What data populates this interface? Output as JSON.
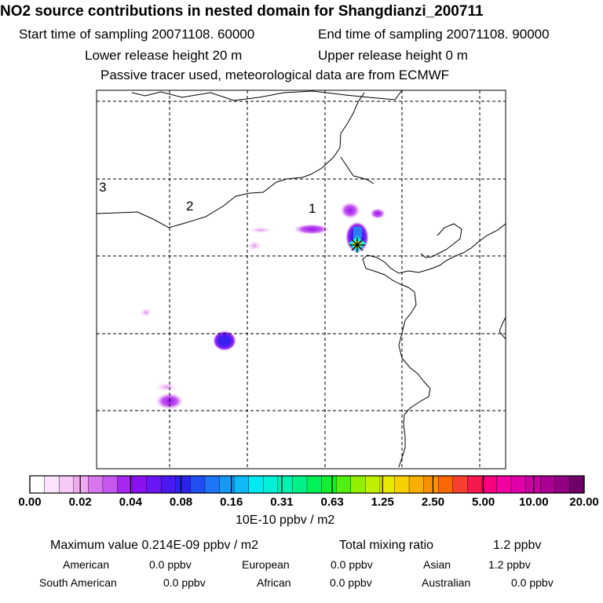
{
  "header": {
    "title": "NO2 source contributions in nested domain for Shangdianzi_200711",
    "start_time": "Start time of sampling 20071108. 60000",
    "end_time": "End time of sampling 20071108. 90000",
    "lower_height": "Lower release height   20 m",
    "upper_height": "Upper release height    0 m",
    "tracer_note": "Passive tracer used, meteorological data are from ECMWF"
  },
  "map": {
    "region_labels": [
      "1",
      "2",
      "3"
    ],
    "receptor_marker": "receptor-star-icon"
  },
  "colorbar": {
    "tick_labels": [
      "0.00",
      "0.02",
      "0.04",
      "0.08",
      "0.16",
      "0.31",
      "0.63",
      "1.25",
      "2.50",
      "5.00",
      "10.00",
      "20.00"
    ],
    "units": "10E-10 ppbv / m2",
    "colors": [
      "#ffffff",
      "#fbe3fb",
      "#f6c9f6",
      "#f0aaf0",
      "#d977ec",
      "#c458f0",
      "#a428f0",
      "#8a12f2",
      "#6a16f4",
      "#4c18f2",
      "#2c22ee",
      "#2050f2",
      "#1c76f6",
      "#1898f6",
      "#10b8f8",
      "#00e8f0",
      "#00f0d8",
      "#00f0b0",
      "#00f088",
      "#00f058",
      "#10f030",
      "#50f010",
      "#90f000",
      "#c0f000",
      "#e8e800",
      "#f8d000",
      "#f8b000",
      "#f89000",
      "#f86800",
      "#f84030",
      "#f81850",
      "#f80080",
      "#f000a0",
      "#e000a8",
      "#c800a0",
      "#a80090",
      "#900080",
      "#700068"
    ]
  },
  "summary": {
    "max_value_line": "Maximum value  0.214E-09 ppbv / m2",
    "total_mixing_label": "Total mixing ratio",
    "total_mixing_value": "1.2 ppbv",
    "regions": [
      {
        "label": "American",
        "value": "0.0 ppbv"
      },
      {
        "label": "European",
        "value": "0.0 ppbv"
      },
      {
        "label": "Asian",
        "value": "1.2 ppbv"
      },
      {
        "label": "South American",
        "value": "0.0 ppbv"
      },
      {
        "label": "African",
        "value": "0.0 ppbv"
      },
      {
        "label": "Australian",
        "value": "0.0 ppbv"
      }
    ]
  }
}
